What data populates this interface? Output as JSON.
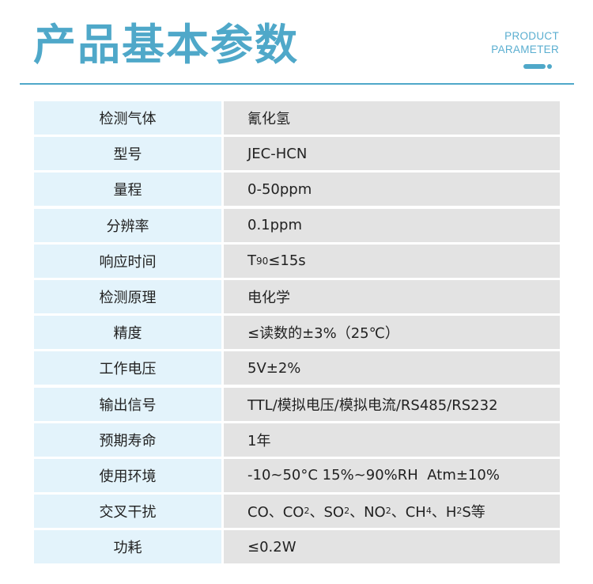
{
  "header": {
    "title": "产品基本参数",
    "en_line1": "PRODUCT",
    "en_line2": "PARAMETER",
    "accent": "#4fa8c9"
  },
  "rows": [
    {
      "label": "检测气体",
      "value": "氰化氢"
    },
    {
      "label": "型号",
      "value": "JEC-HCN"
    },
    {
      "label": "量程",
      "value": "0-50ppm"
    },
    {
      "label": "分辨率",
      "value": "0.1ppm"
    },
    {
      "label": "响应时间",
      "parts": [
        {
          "t": "T"
        },
        {
          "small": "90"
        },
        {
          "t": "≤15s"
        }
      ]
    },
    {
      "label": "检测原理",
      "value": "电化学"
    },
    {
      "label": "精度",
      "value": "≤读数的±3%（25℃）"
    },
    {
      "label": "工作电压",
      "value": "5V±2%"
    },
    {
      "label": "输出信号",
      "value": "TTL/模拟电压/模拟电流/RS485/RS232"
    },
    {
      "label": "预期寿命",
      "value": "1年"
    },
    {
      "label": "使用环境",
      "value": "-10~50°C 15%~90%RH  Atm±10%"
    },
    {
      "label": "交叉干扰",
      "parts": [
        {
          "t": "CO、CO"
        },
        {
          "sub": "2"
        },
        {
          "t": "、SO"
        },
        {
          "sub": "2"
        },
        {
          "t": "、NO"
        },
        {
          "sub": "2"
        },
        {
          "t": "、CH"
        },
        {
          "sub": "4"
        },
        {
          "t": "、H"
        },
        {
          "sub": "2"
        },
        {
          "t": "S等"
        }
      ]
    },
    {
      "label": "功耗",
      "value": "≤0.2W"
    }
  ]
}
